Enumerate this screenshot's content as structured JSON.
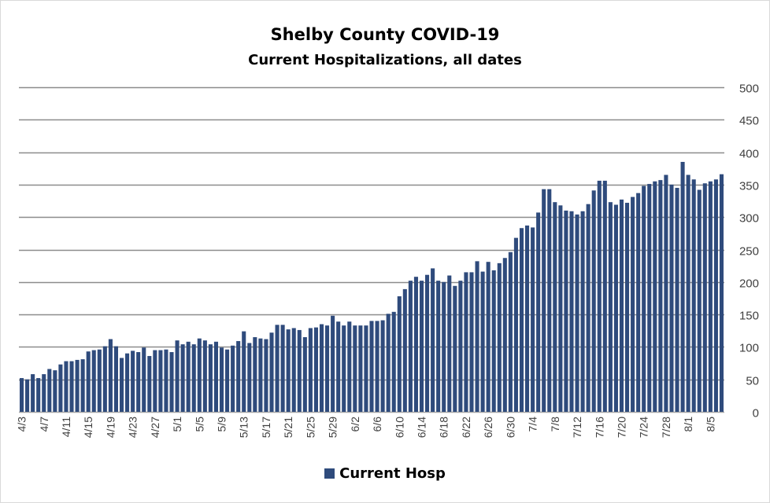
{
  "chart_data": {
    "type": "bar",
    "title": "Shelby County COVID-19",
    "subtitle": "Current Hospitalizations, all dates",
    "ylim": [
      0,
      500
    ],
    "yticks": [
      0,
      50,
      100,
      150,
      200,
      250,
      300,
      350,
      400,
      450,
      500
    ],
    "y_axis_position": "right",
    "grid": true,
    "legend_position": "bottom",
    "bar_color": "#2f4b7c",
    "series": [
      {
        "name": "Current Hosp",
        "values": [
          52,
          50,
          58,
          52,
          58,
          66,
          64,
          73,
          78,
          78,
          80,
          81,
          93,
          95,
          96,
          101,
          112,
          101,
          83,
          90,
          94,
          92,
          99,
          86,
          95,
          95,
          96,
          92,
          110,
          104,
          108,
          104,
          113,
          110,
          104,
          108,
          99,
          96,
          102,
          109,
          124,
          106,
          115,
          113,
          112,
          122,
          134,
          134,
          127,
          129,
          126,
          115,
          129,
          130,
          135,
          133,
          148,
          139,
          133,
          139,
          133,
          133,
          133,
          140,
          140,
          141,
          151,
          154,
          178,
          189,
          202,
          208,
          202,
          211,
          221,
          202,
          200,
          210,
          194,
          202,
          215,
          215,
          232,
          216,
          231,
          218,
          229,
          237,
          246,
          268,
          283,
          287,
          284,
          307,
          343,
          343,
          323,
          318,
          310,
          309,
          304,
          309,
          320,
          341,
          356,
          356,
          323,
          319,
          327,
          322,
          331,
          337,
          348,
          351,
          355,
          357,
          365,
          350,
          345,
          385,
          365,
          358,
          342,
          352,
          355,
          358,
          366
        ]
      }
    ],
    "x_tick_labels": [
      "4/3",
      "4/7",
      "4/11",
      "4/15",
      "4/19",
      "4/23",
      "4/27",
      "5/1",
      "5/5",
      "5/9",
      "5/13",
      "5/17",
      "5/21",
      "5/25",
      "5/29",
      "6/2",
      "6/6",
      "6/10",
      "6/14",
      "6/18",
      "6/22",
      "6/26",
      "6/30",
      "7/4",
      "7/8",
      "7/12",
      "7/16",
      "7/20",
      "7/24",
      "7/28",
      "8/1",
      "8/5"
    ],
    "x_tick_every": 4,
    "first_date": "4/3",
    "last_date": "8/7"
  }
}
